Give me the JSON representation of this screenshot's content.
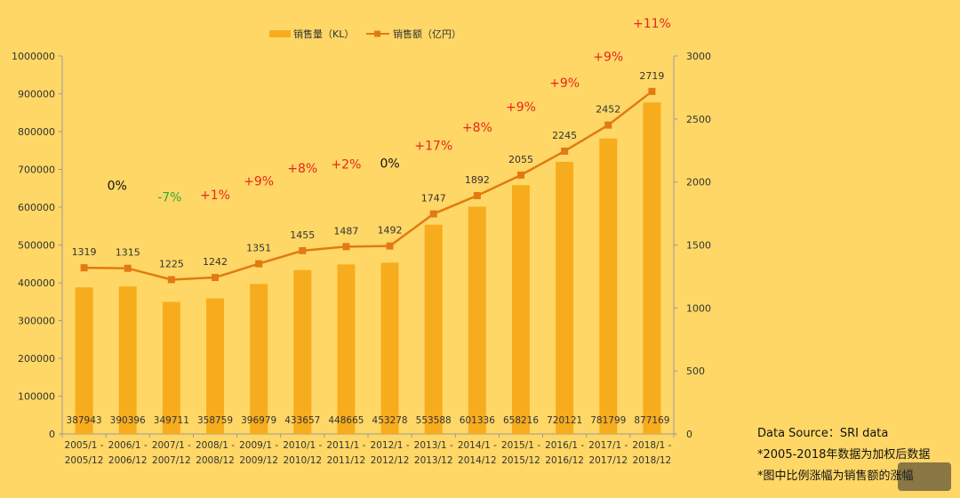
{
  "chart_data": {
    "type": "bar+line",
    "legend": {
      "bar_label": "销售量（KL）",
      "line_label": "销售额（亿円）",
      "placement": "top-center"
    },
    "categories": [
      [
        "2005/1 -",
        "2005/12"
      ],
      [
        "2006/1 -",
        "2006/12"
      ],
      [
        "2007/1 -",
        "2007/12"
      ],
      [
        "2008/1 -",
        "2008/12"
      ],
      [
        "2009/1 -",
        "2009/12"
      ],
      [
        "2010/1 -",
        "2010/12"
      ],
      [
        "2011/1 -",
        "2011/12"
      ],
      [
        "2012/1 -",
        "2012/12"
      ],
      [
        "2013/1 -",
        "2013/12"
      ],
      [
        "2014/1 -",
        "2014/12"
      ],
      [
        "2015/1 -",
        "2015/12"
      ],
      [
        "2016/1 -",
        "2016/12"
      ],
      [
        "2017/1 -",
        "2017/12"
      ],
      [
        "2018/1 -",
        "2018/12"
      ]
    ],
    "bar_series": {
      "name": "销售量（KL）",
      "axis": "left",
      "values": [
        387943,
        390396,
        349711,
        358759,
        396979,
        433657,
        448665,
        453278,
        553588,
        601336,
        658216,
        720121,
        781799,
        877169
      ]
    },
    "line_series": {
      "name": "销售额（亿円）",
      "axis": "right",
      "values": [
        1319,
        1315,
        1225,
        1242,
        1351,
        1455,
        1487,
        1492,
        1747,
        1892,
        2055,
        2245,
        2452,
        2719
      ]
    },
    "growth_labels": [
      "",
      "0%",
      "-7%",
      "+1%",
      "+9%",
      "+8%",
      "+2%",
      "0%",
      "+17%",
      "+8%",
      "+9%",
      "+9%",
      "+9%",
      "+11%"
    ],
    "y_left": {
      "min": 0,
      "max": 1000000,
      "ticks": [
        0,
        100000,
        200000,
        300000,
        400000,
        500000,
        600000,
        700000,
        800000,
        900000,
        1000000
      ]
    },
    "y_right": {
      "min": 0,
      "max": 3000,
      "ticks": [
        0,
        500,
        1000,
        1500,
        2000,
        2500,
        3000
      ]
    },
    "grid": false,
    "colors": {
      "background": "#FFD766",
      "bar": "#F7AC1E",
      "line": "#E07B12",
      "positive": "#E8261C",
      "negative": "#38A838",
      "neutral": "#111111",
      "text": "#333333"
    }
  },
  "notes": {
    "source": "Data Source：SRI data",
    "note1": "*2005-2018年数据为加权后数据",
    "note2": "*图中比例涨幅为销售额的涨幅"
  }
}
